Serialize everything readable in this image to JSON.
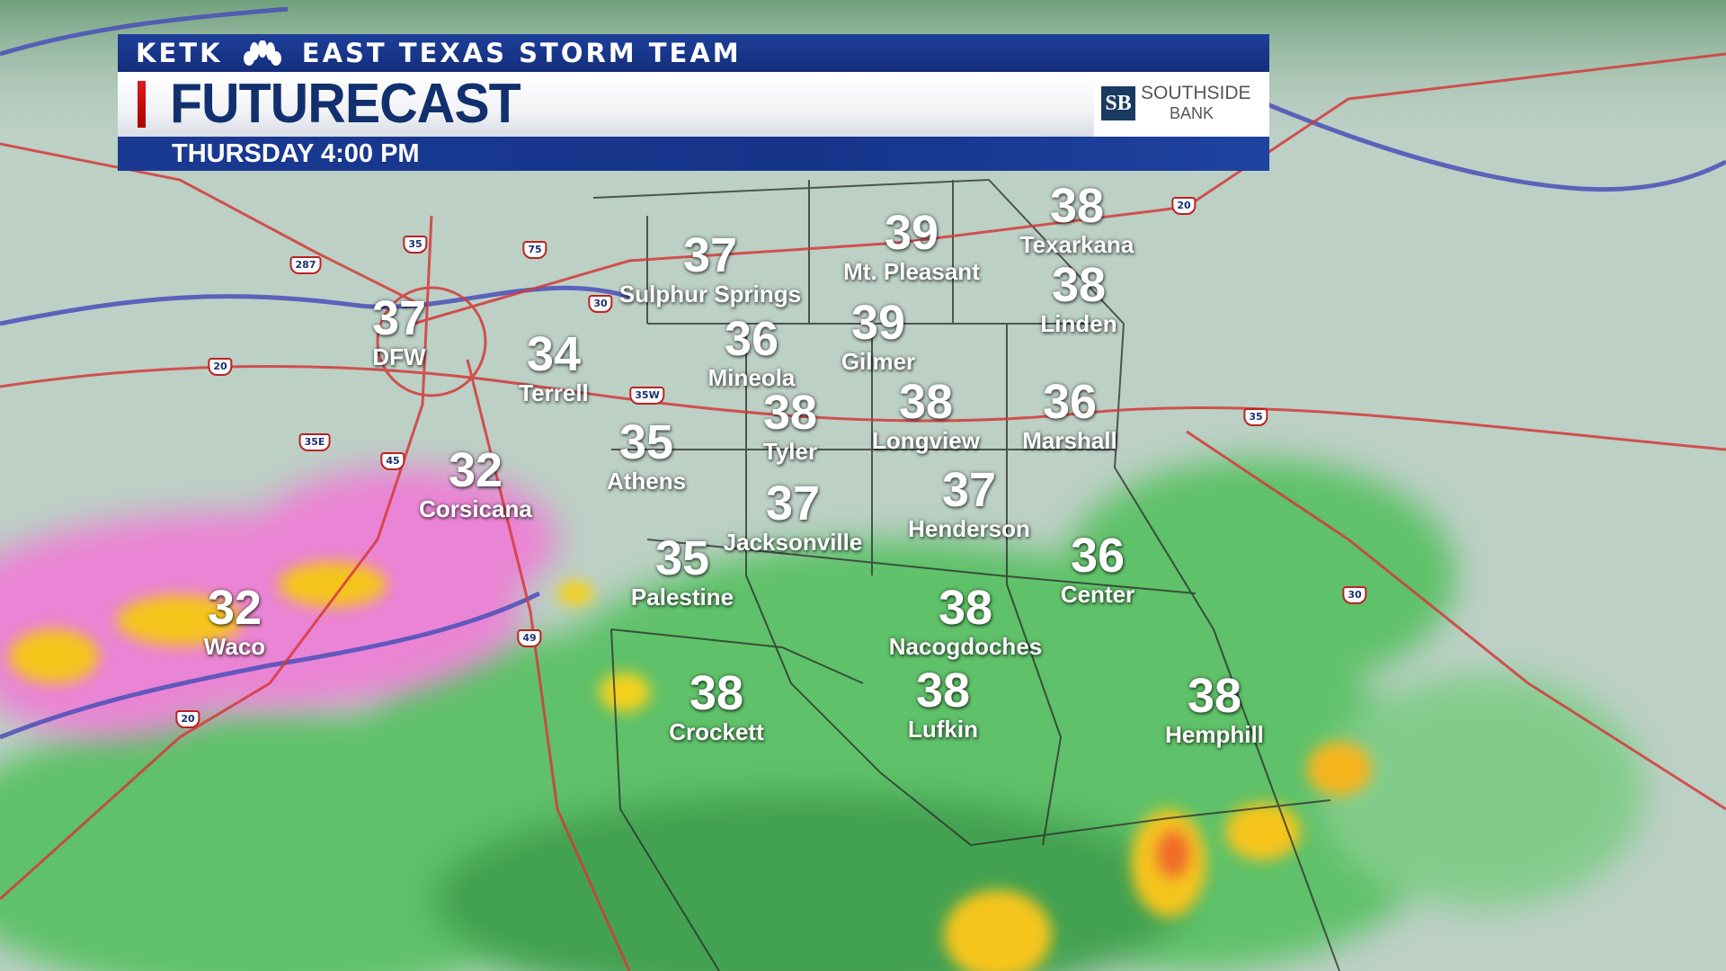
{
  "header": {
    "station": "KETK",
    "team": "EAST TEXAS STORM TEAM",
    "title": "FUTURECAST",
    "time": "THURSDAY 4:00 PM",
    "sponsor": {
      "logo": "SB",
      "name": "SOUTHSIDE",
      "sub": "BANK"
    }
  },
  "icons": {
    "network_logo": "nbc-peacock-icon"
  },
  "colors": {
    "banner_blue": "#16348a",
    "title_navy": "#13306e",
    "accent_red": "#e0191e",
    "rain_green": "#3fb24f",
    "mix_pink": "#f07bd6",
    "heavy_yellow": "#f5d21e",
    "highway_red": "#d33a3a",
    "freezing_line_blue": "#4a4fb8"
  },
  "cities": [
    {
      "name": "Texarkana",
      "temp": "38"
    },
    {
      "name": "Mt. Pleasant",
      "temp": "39"
    },
    {
      "name": "Sulphur Springs",
      "temp": "37"
    },
    {
      "name": "Linden",
      "temp": "38"
    },
    {
      "name": "DFW",
      "temp": "37"
    },
    {
      "name": "Gilmer",
      "temp": "39"
    },
    {
      "name": "Mineola",
      "temp": "36"
    },
    {
      "name": "Terrell",
      "temp": "34"
    },
    {
      "name": "Longview",
      "temp": "38"
    },
    {
      "name": "Marshall",
      "temp": "36"
    },
    {
      "name": "Tyler",
      "temp": "38"
    },
    {
      "name": "Athens",
      "temp": "35"
    },
    {
      "name": "Corsicana",
      "temp": "32"
    },
    {
      "name": "Henderson",
      "temp": "37"
    },
    {
      "name": "Jacksonville",
      "temp": "37"
    },
    {
      "name": "Palestine",
      "temp": "35"
    },
    {
      "name": "Center",
      "temp": "36"
    },
    {
      "name": "Waco",
      "temp": "32"
    },
    {
      "name": "Nacogdoches",
      "temp": "38"
    },
    {
      "name": "Crockett",
      "temp": "38"
    },
    {
      "name": "Lufkin",
      "temp": "38"
    },
    {
      "name": "Hemphill",
      "temp": "38"
    }
  ],
  "highways": [
    "287",
    "35",
    "75",
    "30",
    "20",
    "35W",
    "35E",
    "45",
    "49",
    "30",
    "20",
    "35",
    "20"
  ]
}
